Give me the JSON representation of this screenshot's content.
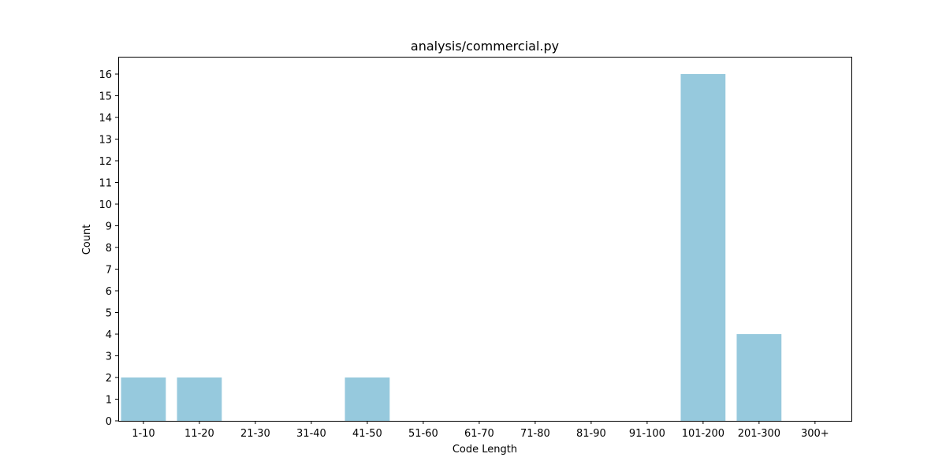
{
  "chart_data": {
    "type": "bar",
    "title": "analysis/commercial.py",
    "xlabel": "Code Length",
    "ylabel": "Count",
    "categories": [
      "1-10",
      "11-20",
      "21-30",
      "31-40",
      "41-50",
      "51-60",
      "61-70",
      "71-80",
      "81-90",
      "91-100",
      "101-200",
      "201-300",
      "300+"
    ],
    "values": [
      2,
      2,
      0,
      0,
      2,
      0,
      0,
      0,
      0,
      0,
      16,
      4,
      0
    ],
    "ylim": [
      0,
      16.8
    ],
    "yticks": [
      0,
      1,
      2,
      3,
      4,
      5,
      6,
      7,
      8,
      9,
      10,
      11,
      12,
      13,
      14,
      15,
      16
    ],
    "grid": false,
    "bar_color": "#96c9dd"
  }
}
